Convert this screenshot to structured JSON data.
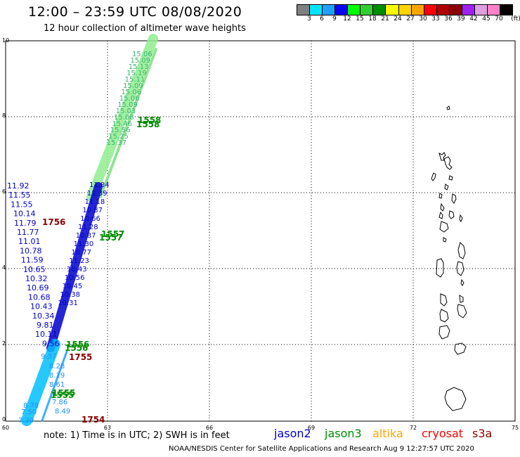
{
  "header": {
    "title": "12:00 – 23:59 UTC 08/08/2020",
    "subtitle": "12 hour collection of altimeter wave heights"
  },
  "colorbar": {
    "unit": "(ft)",
    "labels": [
      "3",
      "6",
      "9",
      "12",
      "15",
      "18",
      "21",
      "24",
      "27",
      "30",
      "33",
      "36",
      "39",
      "42",
      "45",
      "70"
    ],
    "colors": [
      "#808080",
      "#00e5ff",
      "#1ea0ff",
      "#0000ff",
      "#00ff00",
      "#32cd32",
      "#008c00",
      "#ffff00",
      "#ffd200",
      "#ffa500",
      "#ff0000",
      "#b00000",
      "#8b0000",
      "#a020f0",
      "#dda0dd",
      "#ff82c8",
      "#000000"
    ]
  },
  "map": {
    "lon_ticks": [
      "60",
      "63",
      "66",
      "69",
      "72",
      "75"
    ],
    "lat_ticks": [
      "0",
      "2",
      "4",
      "6",
      "8",
      "10"
    ]
  },
  "satellites": [
    {
      "name": "jason2",
      "color": "#0000c8"
    },
    {
      "name": "jason3",
      "color": "#008c00"
    },
    {
      "name": "altika",
      "color": "#ffa500"
    },
    {
      "name": "cryosat",
      "color": "#ff0000"
    },
    {
      "name": "s3a",
      "color": "#8b0000"
    }
  ],
  "passes": {
    "light_green": [
      "15.06",
      "15.09",
      "15.13",
      "15.19",
      "15.11",
      "15.09",
      "15.06",
      "15.06",
      "15.09",
      "15.03",
      "15.08",
      "15.46",
      "15.56",
      "15.25",
      "15.37"
    ],
    "blue_labels": [
      "11.92",
      "11.55",
      "11.55",
      "10.14",
      "11.79",
      "11.77",
      "11.01",
      "10.78",
      "11.59",
      "10.65",
      "10.32",
      "10.69",
      "10.68",
      "10.43",
      "10.34",
      "9.81",
      "10.11",
      "9.56"
    ],
    "blue_track": [
      "11.84",
      "11.39",
      "11.18",
      "10.87",
      "10.66",
      "11.28",
      "10.87",
      "11.30",
      "10.77",
      "11.23",
      "10.43",
      "10.56",
      "10.45",
      "10.38",
      "10.31"
    ],
    "cyan_labels": [
      "9.37",
      "8.28",
      "8.19",
      "8.61",
      "7.86",
      "8.49",
      "8.78",
      "7.50",
      "7.30"
    ],
    "time_labels": [
      {
        "text": "1558",
        "color": "#008c00"
      },
      {
        "text": "1558",
        "color": "#008c00"
      },
      {
        "text": "1557",
        "color": "#008c00"
      },
      {
        "text": "1557",
        "color": "#008c00"
      },
      {
        "text": "1756",
        "color": "#8b0000"
      },
      {
        "text": "1556",
        "color": "#008c00"
      },
      {
        "text": "1556",
        "color": "#008c00"
      },
      {
        "text": "1755",
        "color": "#8b0000"
      },
      {
        "text": "1555",
        "color": "#008c00"
      },
      {
        "text": "1555",
        "color": "#008c00"
      },
      {
        "text": "1754",
        "color": "#8b0000"
      }
    ]
  },
  "footer": {
    "note": "note:  1) Time is in UTC;  2) SWH is in feet",
    "credit": "NOAA/NESDIS Center for Satellite Applications and Research    Aug  9 12:27:57 UTC 2020"
  }
}
